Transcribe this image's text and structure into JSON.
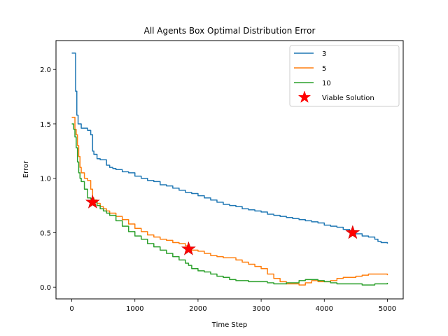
{
  "chart_data": {
    "type": "line",
    "title": "All Agents Box Optimal Distribution Error",
    "xlabel": "Time Step",
    "ylabel": "Error",
    "xlim": [
      -250,
      5250
    ],
    "ylim": [
      -0.108,
      2.265
    ],
    "xticks": [
      0,
      1000,
      2000,
      3000,
      4000,
      5000
    ],
    "yticks": [
      0.0,
      0.5,
      1.0,
      1.5,
      2.0
    ],
    "xtick_labels": [
      "0",
      "1000",
      "2000",
      "3000",
      "4000",
      "5000"
    ],
    "ytick_labels": [
      "0.0",
      "0.5",
      "1.0",
      "1.5",
      "2.0"
    ],
    "grid": false,
    "legend_position": "top-right",
    "series": [
      {
        "name": "3",
        "color": "#1f77b4",
        "x": [
          0,
          50,
          60,
          80,
          100,
          150,
          200,
          250,
          300,
          330,
          350,
          400,
          450,
          500,
          550,
          600,
          650,
          700,
          800,
          900,
          1000,
          1100,
          1200,
          1300,
          1400,
          1500,
          1600,
          1700,
          1800,
          1900,
          2000,
          2100,
          2200,
          2300,
          2400,
          2500,
          2600,
          2700,
          2800,
          2900,
          3000,
          3100,
          3200,
          3300,
          3400,
          3500,
          3600,
          3700,
          3800,
          3900,
          4000,
          4100,
          4200,
          4300,
          4400,
          4450,
          4500,
          4600,
          4700,
          4800,
          4850,
          4900,
          5000
        ],
        "y": [
          2.15,
          2.15,
          1.8,
          1.58,
          1.5,
          1.46,
          1.46,
          1.44,
          1.4,
          1.25,
          1.22,
          1.18,
          1.17,
          1.17,
          1.12,
          1.1,
          1.09,
          1.08,
          1.06,
          1.05,
          1.02,
          1.0,
          0.98,
          0.97,
          0.94,
          0.93,
          0.91,
          0.89,
          0.87,
          0.86,
          0.84,
          0.82,
          0.8,
          0.78,
          0.76,
          0.75,
          0.74,
          0.72,
          0.71,
          0.7,
          0.69,
          0.67,
          0.66,
          0.65,
          0.64,
          0.63,
          0.62,
          0.61,
          0.6,
          0.59,
          0.57,
          0.56,
          0.55,
          0.53,
          0.52,
          0.51,
          0.49,
          0.47,
          0.46,
          0.44,
          0.42,
          0.41,
          0.4
        ]
      },
      {
        "name": "5",
        "color": "#ff7f0e",
        "x": [
          0,
          30,
          50,
          70,
          90,
          110,
          130,
          150,
          200,
          250,
          300,
          330,
          350,
          400,
          450,
          500,
          550,
          600,
          700,
          800,
          900,
          1000,
          1100,
          1200,
          1300,
          1400,
          1500,
          1600,
          1700,
          1800,
          1850,
          1900,
          2000,
          2100,
          2200,
          2300,
          2400,
          2500,
          2600,
          2700,
          2800,
          2900,
          3000,
          3100,
          3200,
          3300,
          3400,
          3500,
          3600,
          3700,
          3800,
          3900,
          4000,
          4100,
          4200,
          4300,
          4400,
          4500,
          4600,
          4700,
          4800,
          4900,
          5000
        ],
        "y": [
          1.56,
          1.56,
          1.45,
          1.4,
          1.3,
          1.2,
          1.1,
          1.05,
          1.0,
          0.98,
          0.9,
          0.82,
          0.8,
          0.77,
          0.74,
          0.72,
          0.7,
          0.68,
          0.65,
          0.62,
          0.58,
          0.54,
          0.51,
          0.48,
          0.46,
          0.44,
          0.43,
          0.41,
          0.4,
          0.38,
          0.36,
          0.34,
          0.33,
          0.31,
          0.29,
          0.28,
          0.27,
          0.27,
          0.25,
          0.23,
          0.21,
          0.19,
          0.17,
          0.12,
          0.08,
          0.05,
          0.03,
          0.03,
          0.02,
          0.04,
          0.06,
          0.05,
          0.05,
          0.06,
          0.08,
          0.09,
          0.09,
          0.1,
          0.11,
          0.12,
          0.12,
          0.12,
          0.11
        ]
      },
      {
        "name": "10",
        "color": "#2ca02c",
        "x": [
          0,
          30,
          50,
          70,
          90,
          110,
          130,
          150,
          200,
          250,
          300,
          350,
          400,
          450,
          500,
          550,
          600,
          700,
          800,
          900,
          1000,
          1100,
          1200,
          1300,
          1400,
          1500,
          1600,
          1700,
          1800,
          1850,
          1900,
          2000,
          2100,
          2200,
          2300,
          2400,
          2500,
          2600,
          2700,
          2800,
          2900,
          3000,
          3100,
          3200,
          3300,
          3400,
          3500,
          3600,
          3700,
          3800,
          3900,
          4000,
          4100,
          4200,
          4300,
          4400,
          4500,
          4600,
          4700,
          4800,
          4900,
          5000
        ],
        "y": [
          1.5,
          1.45,
          1.38,
          1.28,
          1.15,
          1.05,
          1.0,
          0.97,
          0.9,
          0.82,
          0.81,
          0.78,
          0.75,
          0.72,
          0.7,
          0.68,
          0.66,
          0.61,
          0.56,
          0.51,
          0.47,
          0.44,
          0.4,
          0.37,
          0.34,
          0.31,
          0.28,
          0.25,
          0.22,
          0.2,
          0.17,
          0.15,
          0.14,
          0.12,
          0.1,
          0.09,
          0.07,
          0.06,
          0.06,
          0.05,
          0.05,
          0.05,
          0.04,
          0.03,
          0.03,
          0.04,
          0.04,
          0.06,
          0.07,
          0.07,
          0.06,
          0.05,
          0.04,
          0.03,
          0.03,
          0.03,
          0.03,
          0.02,
          0.02,
          0.03,
          0.03,
          0.04
        ]
      }
    ],
    "markers": {
      "name": "Viable Solution",
      "color": "#ff0000",
      "points": [
        {
          "x": 330,
          "y": 0.78
        },
        {
          "x": 1850,
          "y": 0.35
        },
        {
          "x": 4450,
          "y": 0.5
        }
      ]
    }
  }
}
